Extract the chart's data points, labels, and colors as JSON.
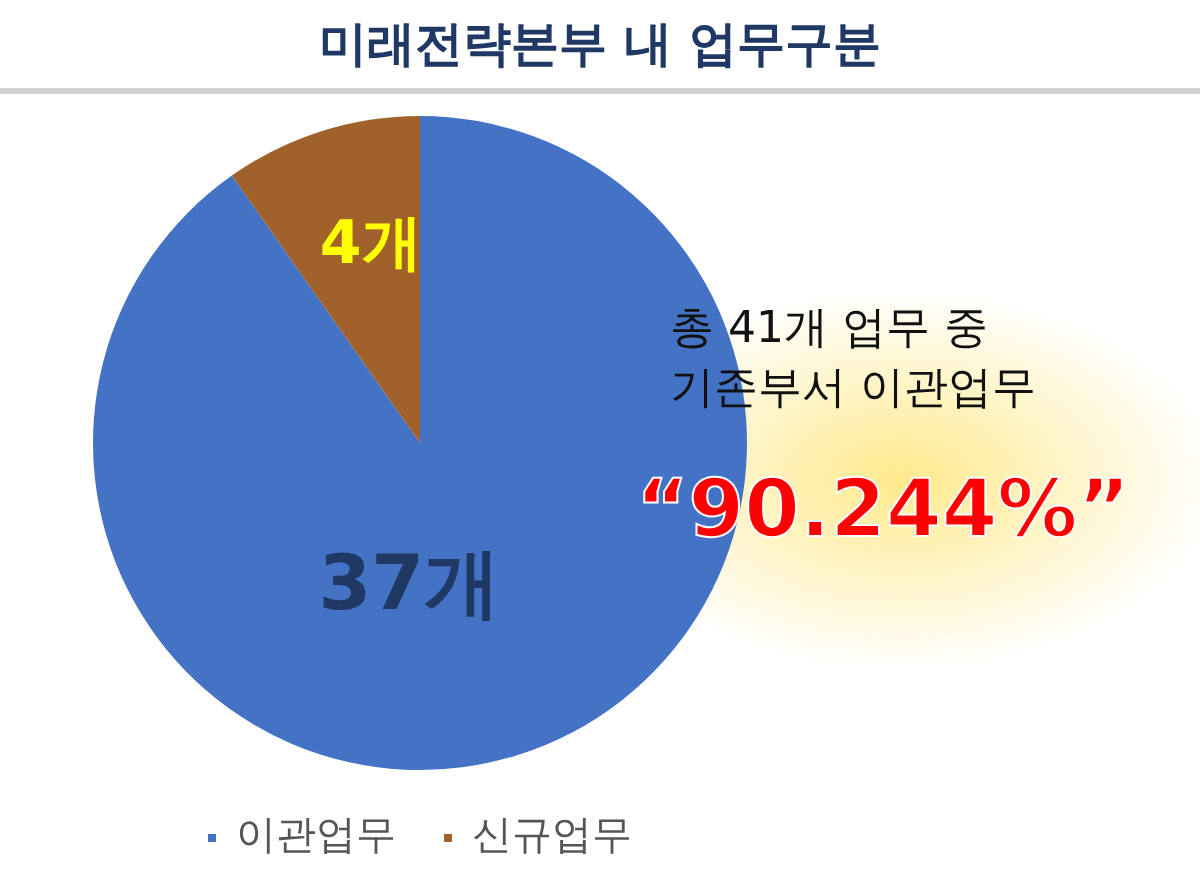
{
  "chart_data": {
    "type": "pie",
    "title": "미래전략본부 내 업무구분",
    "categories": [
      "이관업무",
      "신규업무"
    ],
    "values": [
      37,
      4
    ],
    "colors": [
      "#4472c4",
      "#a0612b"
    ],
    "value_labels": [
      "37개",
      "4개"
    ],
    "legend": "bottom",
    "annotations": [
      "총 41개 업무 중\n기존부서 이관업무",
      "“90.244%”"
    ]
  }
}
